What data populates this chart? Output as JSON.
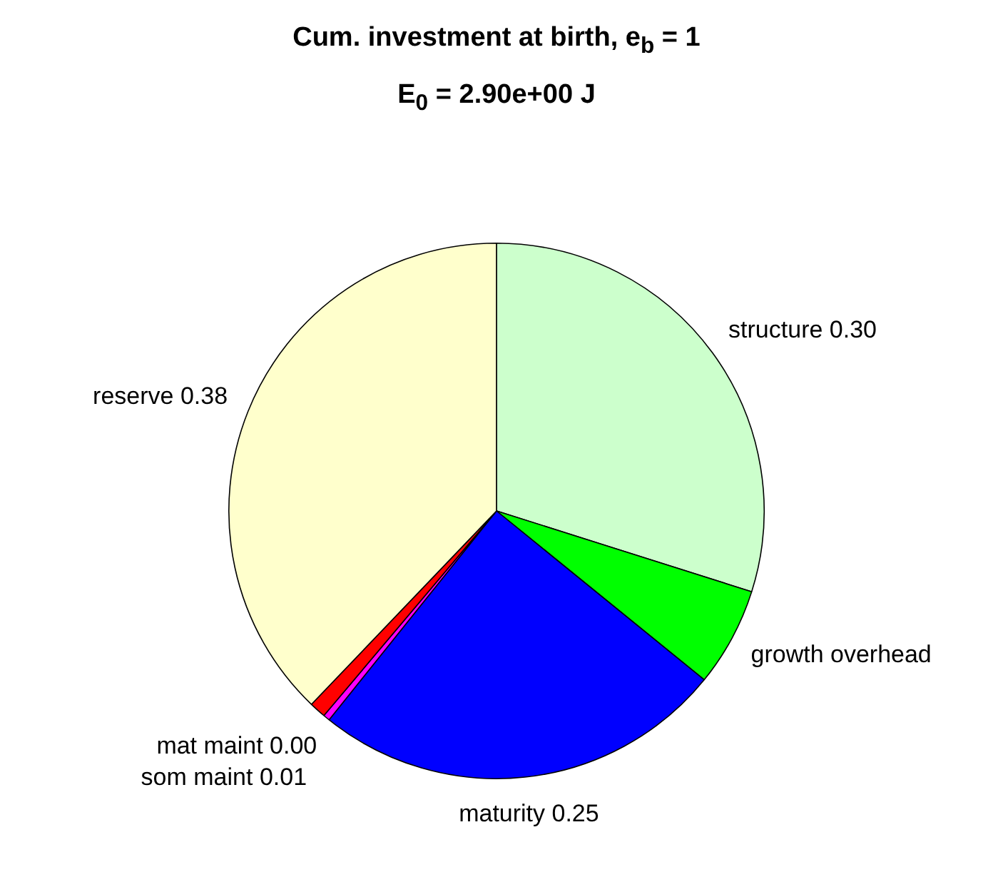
{
  "chart_data": {
    "type": "pie",
    "title": "Cum. investment at birth, e$_{b}$ = 1",
    "subtitle": "E$_{0}$ = 2.90e+00 J",
    "categories": [
      "structure",
      "growth overhead",
      "maturity",
      "mat maint",
      "som maint",
      "reserve"
    ],
    "values": [
      0.3,
      0.06,
      0.25,
      0.004,
      0.01,
      0.38
    ],
    "value_labels": [
      "0.30",
      null,
      "0.25",
      "0.00",
      "0.01",
      "0.38"
    ],
    "colors": [
      "#ccffcc",
      "#00ff00",
      "#0000ff",
      "#ff00ff",
      "#ff0000",
      "#ffffcc"
    ],
    "legend": false
  }
}
